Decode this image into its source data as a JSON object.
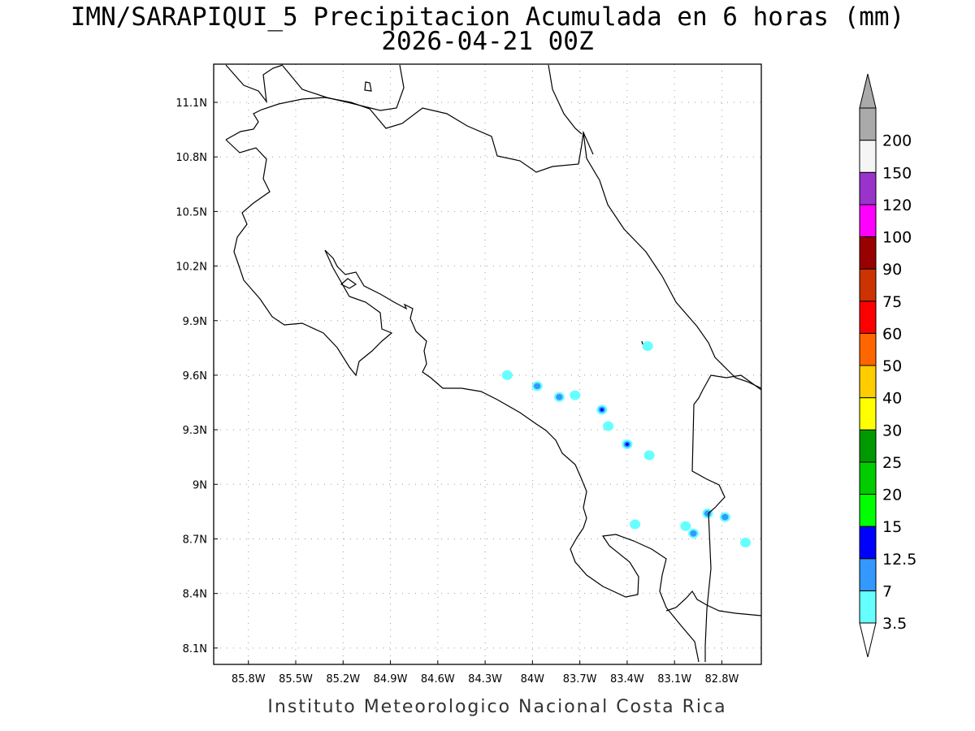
{
  "title": {
    "line1": "IMN/SARAPIQUI_5 Precipitacion Acumulada en 6 horas (mm)",
    "line2": "2026-04-21 00Z"
  },
  "footer": "Instituto Meteorologico Nacional Costa Rica",
  "map": {
    "lon_range": [
      -86.02,
      -82.55
    ],
    "lat_range": [
      8.01,
      11.31
    ],
    "lon_ticks": [
      {
        "value": -85.8,
        "label": "85.8W"
      },
      {
        "value": -85.5,
        "label": "85.5W"
      },
      {
        "value": -85.2,
        "label": "85.2W"
      },
      {
        "value": -84.9,
        "label": "84.9W"
      },
      {
        "value": -84.6,
        "label": "84.6W"
      },
      {
        "value": -84.3,
        "label": "84.3W"
      },
      {
        "value": -84.0,
        "label": "84W"
      },
      {
        "value": -83.7,
        "label": "83.7W"
      },
      {
        "value": -83.4,
        "label": "83.4W"
      },
      {
        "value": -83.1,
        "label": "83.1W"
      },
      {
        "value": -82.8,
        "label": "82.8W"
      }
    ],
    "lat_ticks": [
      {
        "value": 11.1,
        "label": "11.1N"
      },
      {
        "value": 10.8,
        "label": "10.8N"
      },
      {
        "value": 10.5,
        "label": "10.5N"
      },
      {
        "value": 10.2,
        "label": "10.2N"
      },
      {
        "value": 9.9,
        "label": "9.9N"
      },
      {
        "value": 9.6,
        "label": "9.6N"
      },
      {
        "value": 9.3,
        "label": "9.3N"
      },
      {
        "value": 9.0,
        "label": "9N"
      },
      {
        "value": 8.7,
        "label": "8.7N"
      },
      {
        "value": 8.4,
        "label": "8.4N"
      },
      {
        "value": 8.1,
        "label": "8.1N"
      }
    ],
    "grid": true,
    "precip_cells": [
      {
        "lon": -84.16,
        "lat": 9.6,
        "level": "3.5"
      },
      {
        "lon": -83.97,
        "lat": 9.54,
        "level": "7"
      },
      {
        "lon": -83.83,
        "lat": 9.48,
        "level": "7"
      },
      {
        "lon": -83.73,
        "lat": 9.49,
        "level": "3.5"
      },
      {
        "lon": -83.56,
        "lat": 9.41,
        "level": "12.5"
      },
      {
        "lon": -83.52,
        "lat": 9.32,
        "level": "3.5"
      },
      {
        "lon": -83.4,
        "lat": 9.22,
        "level": "12.5"
      },
      {
        "lon": -83.26,
        "lat": 9.16,
        "level": "3.5"
      },
      {
        "lon": -83.27,
        "lat": 9.76,
        "level": "3.5"
      },
      {
        "lon": -83.35,
        "lat": 8.78,
        "level": "3.5"
      },
      {
        "lon": -83.03,
        "lat": 8.77,
        "level": "3.5"
      },
      {
        "lon": -82.98,
        "lat": 8.73,
        "level": "7"
      },
      {
        "lon": -82.89,
        "lat": 8.84,
        "level": "7"
      },
      {
        "lon": -82.78,
        "lat": 8.82,
        "level": "7"
      },
      {
        "lon": -82.65,
        "lat": 8.68,
        "level": "3.5"
      }
    ]
  },
  "colorbar": {
    "levels": [
      {
        "label": "3.5",
        "color": "#66ffff"
      },
      {
        "label": "7",
        "color": "#3399ff"
      },
      {
        "label": "12.5",
        "color": "#0000ff"
      },
      {
        "label": "15",
        "color": "#00ff00"
      },
      {
        "label": "20",
        "color": "#00cc00"
      },
      {
        "label": "25",
        "color": "#009900"
      },
      {
        "label": "30",
        "color": "#ffff00"
      },
      {
        "label": "40",
        "color": "#ffcc00"
      },
      {
        "label": "50",
        "color": "#ff6600"
      },
      {
        "label": "60",
        "color": "#ff0000"
      },
      {
        "label": "75",
        "color": "#cc3300"
      },
      {
        "label": "90",
        "color": "#990000"
      },
      {
        "label": "100",
        "color": "#ff00ff"
      },
      {
        "label": "120",
        "color": "#9933cc"
      },
      {
        "label": "150",
        "color": "#f5f5f5"
      },
      {
        "label": "200",
        "color": "#aaaaaa"
      }
    ],
    "below_color": "#ffffff",
    "above_color": "#aaaaaa"
  }
}
